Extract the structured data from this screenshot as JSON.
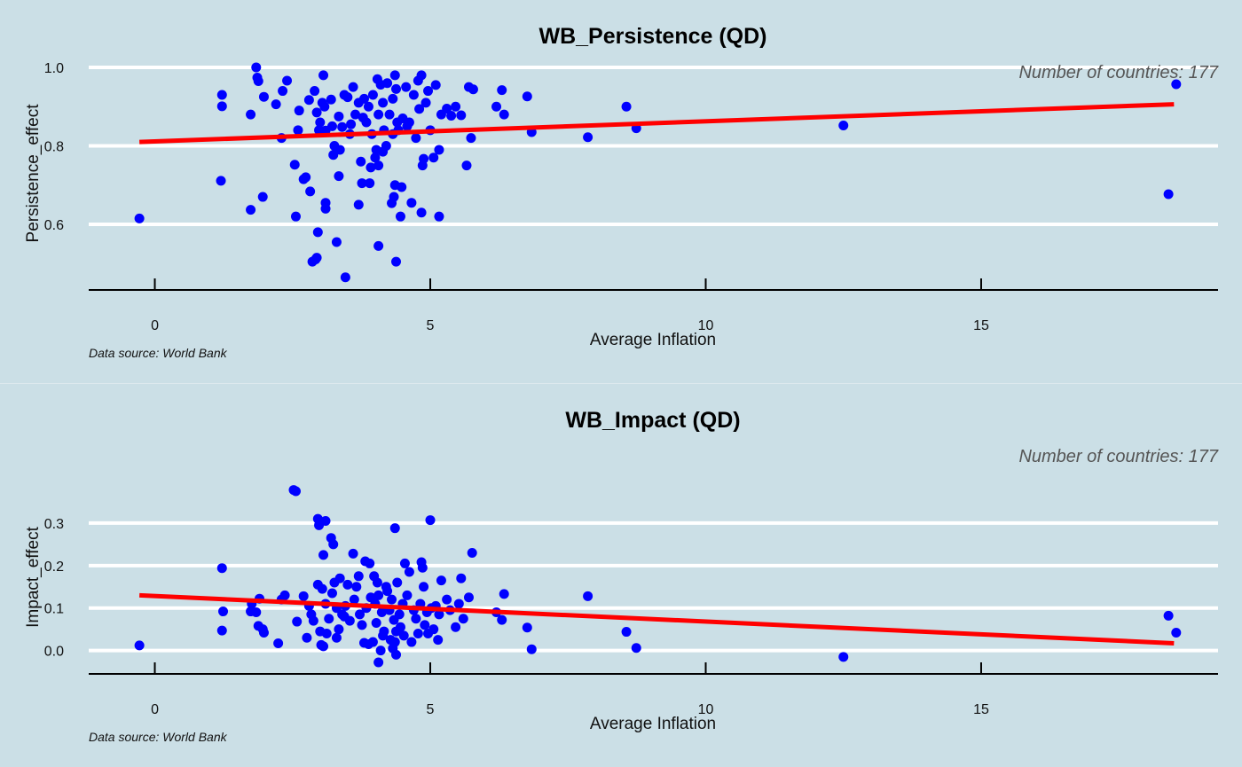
{
  "colors": {
    "background": "#cbdfe6",
    "point": "#0000ff",
    "fit_line": "#ff0000",
    "grid": "#ffffff",
    "axis": "#000000"
  },
  "chart_data": [
    {
      "type": "scatter",
      "title": "WB_Persistence (QD)",
      "xlabel": "Average Inflation",
      "ylabel": "Persistence_effect",
      "annotation": "Number of countries: 177",
      "caption": "Data source: World Bank",
      "xlim": [
        -1.2,
        19.3
      ],
      "ylim": [
        0.46,
        1.0
      ],
      "x_ticks": [
        0,
        5,
        10,
        15
      ],
      "y_ticks": [
        0.6,
        0.8,
        1.0
      ],
      "y_tick_labels": [
        "0.6",
        "0.8",
        "1.0"
      ],
      "grid": true,
      "fit_line": {
        "x": [
          -0.28,
          18.5
        ],
        "y": [
          0.81,
          0.906
        ]
      },
      "points": [
        [
          -0.28,
          0.615
        ],
        [
          1.22,
          0.93
        ],
        [
          1.22,
          0.901
        ],
        [
          1.2,
          0.711
        ],
        [
          1.74,
          0.88
        ],
        [
          1.74,
          0.637
        ],
        [
          1.84,
          1.0
        ],
        [
          1.86,
          0.974
        ],
        [
          1.88,
          0.965
        ],
        [
          1.96,
          0.67
        ],
        [
          1.98,
          0.925
        ],
        [
          2.2,
          0.906
        ],
        [
          2.3,
          0.82
        ],
        [
          2.32,
          0.94
        ],
        [
          2.4,
          0.966
        ],
        [
          2.54,
          0.752
        ],
        [
          2.56,
          0.62
        ],
        [
          2.6,
          0.84
        ],
        [
          2.62,
          0.89
        ],
        [
          2.7,
          0.715
        ],
        [
          2.74,
          0.72
        ],
        [
          2.8,
          0.917
        ],
        [
          2.82,
          0.684
        ],
        [
          2.86,
          0.505
        ],
        [
          2.9,
          0.94
        ],
        [
          2.92,
          0.511
        ],
        [
          2.94,
          0.515
        ],
        [
          2.94,
          0.885
        ],
        [
          2.96,
          0.58
        ],
        [
          2.98,
          0.84
        ],
        [
          3.0,
          0.86
        ],
        [
          3.04,
          0.91
        ],
        [
          3.06,
          0.98
        ],
        [
          3.08,
          0.9
        ],
        [
          3.1,
          0.839
        ],
        [
          3.1,
          0.655
        ],
        [
          3.1,
          0.64
        ],
        [
          3.2,
          0.918
        ],
        [
          3.22,
          0.85
        ],
        [
          3.24,
          0.777
        ],
        [
          3.26,
          0.8
        ],
        [
          3.3,
          0.555
        ],
        [
          3.34,
          0.723
        ],
        [
          3.34,
          0.875
        ],
        [
          3.36,
          0.79
        ],
        [
          3.4,
          0.848
        ],
        [
          3.44,
          0.93
        ],
        [
          3.46,
          0.465
        ],
        [
          3.5,
          0.924
        ],
        [
          3.54,
          0.83
        ],
        [
          3.56,
          0.855
        ],
        [
          3.6,
          0.95
        ],
        [
          3.64,
          0.88
        ],
        [
          3.7,
          0.65
        ],
        [
          3.7,
          0.91
        ],
        [
          3.74,
          0.76
        ],
        [
          3.76,
          0.705
        ],
        [
          3.78,
          0.872
        ],
        [
          3.8,
          0.92
        ],
        [
          3.84,
          0.86
        ],
        [
          3.88,
          0.9
        ],
        [
          3.9,
          0.705
        ],
        [
          3.92,
          0.745
        ],
        [
          3.94,
          0.83
        ],
        [
          3.96,
          0.93
        ],
        [
          4.0,
          0.77
        ],
        [
          4.02,
          0.79
        ],
        [
          4.04,
          0.97
        ],
        [
          4.06,
          0.88
        ],
        [
          4.06,
          0.75
        ],
        [
          4.06,
          0.545
        ],
        [
          4.1,
          0.956
        ],
        [
          4.14,
          0.91
        ],
        [
          4.14,
          0.785
        ],
        [
          4.16,
          0.84
        ],
        [
          4.2,
          0.8
        ],
        [
          4.22,
          0.96
        ],
        [
          4.26,
          0.88
        ],
        [
          4.3,
          0.654
        ],
        [
          4.32,
          0.83
        ],
        [
          4.32,
          0.92
        ],
        [
          4.34,
          0.67
        ],
        [
          4.36,
          0.98
        ],
        [
          4.36,
          0.7
        ],
        [
          4.38,
          0.945
        ],
        [
          4.38,
          0.505
        ],
        [
          4.4,
          0.86
        ],
        [
          4.42,
          0.84
        ],
        [
          4.46,
          0.62
        ],
        [
          4.48,
          0.695
        ],
        [
          4.5,
          0.87
        ],
        [
          4.56,
          0.95
        ],
        [
          4.58,
          0.85
        ],
        [
          4.62,
          0.86
        ],
        [
          4.66,
          0.655
        ],
        [
          4.7,
          0.93
        ],
        [
          4.74,
          0.82
        ],
        [
          4.78,
          0.966
        ],
        [
          4.8,
          0.894
        ],
        [
          4.84,
          0.63
        ],
        [
          4.84,
          0.98
        ],
        [
          4.86,
          0.75
        ],
        [
          4.88,
          0.767
        ],
        [
          4.92,
          0.91
        ],
        [
          4.96,
          0.94
        ],
        [
          5.0,
          0.84
        ],
        [
          5.06,
          0.77
        ],
        [
          5.1,
          0.955
        ],
        [
          5.16,
          0.62
        ],
        [
          5.16,
          0.79
        ],
        [
          5.2,
          0.88
        ],
        [
          5.3,
          0.895
        ],
        [
          5.38,
          0.877
        ],
        [
          5.46,
          0.9
        ],
        [
          5.56,
          0.878
        ],
        [
          5.66,
          0.75
        ],
        [
          5.7,
          0.95
        ],
        [
          5.74,
          0.82
        ],
        [
          5.78,
          0.944
        ],
        [
          6.2,
          0.9
        ],
        [
          6.3,
          0.942
        ],
        [
          6.34,
          0.88
        ],
        [
          6.76,
          0.926
        ],
        [
          6.84,
          0.835
        ],
        [
          7.86,
          0.822
        ],
        [
          8.56,
          0.9
        ],
        [
          8.74,
          0.845
        ],
        [
          12.5,
          0.852
        ],
        [
          18.4,
          0.677
        ],
        [
          18.54,
          0.957
        ]
      ]
    },
    {
      "type": "scatter",
      "title": "WB_Impact (QD)",
      "xlabel": "Average Inflation",
      "ylabel": "Impact_effect",
      "annotation": "Number of countries: 177",
      "caption": "Data source: World Bank",
      "xlim": [
        -1.2,
        19.3
      ],
      "ylim": [
        -0.03,
        0.375
      ],
      "x_ticks": [
        0,
        5,
        10,
        15
      ],
      "y_ticks": [
        0.0,
        0.1,
        0.2,
        0.3
      ],
      "y_tick_labels": [
        "0.0",
        "0.1",
        "0.2",
        "0.3"
      ],
      "grid": true,
      "fit_line": {
        "x": [
          -0.28,
          18.5
        ],
        "y": [
          0.13,
          0.017
        ]
      },
      "points": [
        [
          -0.28,
          0.012
        ],
        [
          1.22,
          0.194
        ],
        [
          1.24,
          0.092
        ],
        [
          1.22,
          0.047
        ],
        [
          1.74,
          0.092
        ],
        [
          1.76,
          0.11
        ],
        [
          1.84,
          0.09
        ],
        [
          1.9,
          0.122
        ],
        [
          1.88,
          0.058
        ],
        [
          1.96,
          0.05
        ],
        [
          1.98,
          0.042
        ],
        [
          2.24,
          0.017
        ],
        [
          2.3,
          0.12
        ],
        [
          2.36,
          0.13
        ],
        [
          2.52,
          0.378
        ],
        [
          2.56,
          0.375
        ],
        [
          2.58,
          0.068
        ],
        [
          2.7,
          0.128
        ],
        [
          2.76,
          0.03
        ],
        [
          2.8,
          0.105
        ],
        [
          2.84,
          0.085
        ],
        [
          2.88,
          0.07
        ],
        [
          2.96,
          0.155
        ],
        [
          2.96,
          0.31
        ],
        [
          2.98,
          0.295
        ],
        [
          3.0,
          0.045
        ],
        [
          3.02,
          0.013
        ],
        [
          3.04,
          0.145
        ],
        [
          3.06,
          0.01
        ],
        [
          3.06,
          0.225
        ],
        [
          3.1,
          0.305
        ],
        [
          3.1,
          0.11
        ],
        [
          3.12,
          0.04
        ],
        [
          3.16,
          0.075
        ],
        [
          3.2,
          0.265
        ],
        [
          3.22,
          0.135
        ],
        [
          3.24,
          0.25
        ],
        [
          3.26,
          0.16
        ],
        [
          3.3,
          0.1
        ],
        [
          3.3,
          0.03
        ],
        [
          3.34,
          0.05
        ],
        [
          3.36,
          0.17
        ],
        [
          3.4,
          0.085
        ],
        [
          3.44,
          0.08
        ],
        [
          3.46,
          0.105
        ],
        [
          3.5,
          0.155
        ],
        [
          3.54,
          0.07
        ],
        [
          3.6,
          0.228
        ],
        [
          3.62,
          0.12
        ],
        [
          3.66,
          0.15
        ],
        [
          3.7,
          0.175
        ],
        [
          3.72,
          0.085
        ],
        [
          3.76,
          0.06
        ],
        [
          3.8,
          0.018
        ],
        [
          3.82,
          0.21
        ],
        [
          3.84,
          0.1
        ],
        [
          3.88,
          0.015
        ],
        [
          3.9,
          0.205
        ],
        [
          3.92,
          0.125
        ],
        [
          3.96,
          0.02
        ],
        [
          3.98,
          0.175
        ],
        [
          4.0,
          0.11
        ],
        [
          4.02,
          0.065
        ],
        [
          4.04,
          0.16
        ],
        [
          4.06,
          0.13
        ],
        [
          4.06,
          -0.028
        ],
        [
          4.1,
          0.0
        ],
        [
          4.12,
          0.09
        ],
        [
          4.14,
          0.035
        ],
        [
          4.16,
          0.045
        ],
        [
          4.2,
          0.15
        ],
        [
          4.22,
          0.14
        ],
        [
          4.26,
          0.095
        ],
        [
          4.28,
          0.025
        ],
        [
          4.3,
          0.12
        ],
        [
          4.32,
          0.005
        ],
        [
          4.34,
          0.072
        ],
        [
          4.36,
          0.288
        ],
        [
          4.36,
          0.02
        ],
        [
          4.38,
          0.045
        ],
        [
          4.38,
          -0.01
        ],
        [
          4.4,
          0.16
        ],
        [
          4.44,
          0.085
        ],
        [
          4.46,
          0.055
        ],
        [
          4.5,
          0.11
        ],
        [
          4.52,
          0.035
        ],
        [
          4.54,
          0.205
        ],
        [
          4.58,
          0.13
        ],
        [
          4.62,
          0.185
        ],
        [
          4.66,
          0.02
        ],
        [
          4.7,
          0.095
        ],
        [
          4.74,
          0.075
        ],
        [
          4.78,
          0.04
        ],
        [
          4.82,
          0.11
        ],
        [
          4.84,
          0.208
        ],
        [
          4.86,
          0.195
        ],
        [
          4.88,
          0.15
        ],
        [
          4.9,
          0.06
        ],
        [
          4.94,
          0.09
        ],
        [
          4.96,
          0.04
        ],
        [
          5.0,
          0.307
        ],
        [
          5.02,
          0.1
        ],
        [
          5.06,
          0.05
        ],
        [
          5.1,
          0.105
        ],
        [
          5.14,
          0.025
        ],
        [
          5.16,
          0.085
        ],
        [
          5.2,
          0.165
        ],
        [
          5.3,
          0.12
        ],
        [
          5.36,
          0.095
        ],
        [
          5.46,
          0.055
        ],
        [
          5.52,
          0.11
        ],
        [
          5.56,
          0.17
        ],
        [
          5.6,
          0.075
        ],
        [
          5.7,
          0.125
        ],
        [
          5.76,
          0.23
        ],
        [
          6.2,
          0.09
        ],
        [
          6.3,
          0.072
        ],
        [
          6.34,
          0.133
        ],
        [
          6.76,
          0.054
        ],
        [
          6.84,
          0.003
        ],
        [
          7.86,
          0.128
        ],
        [
          8.56,
          0.044
        ],
        [
          8.74,
          0.006
        ],
        [
          12.5,
          -0.015
        ],
        [
          18.4,
          0.082
        ],
        [
          18.54,
          0.042
        ]
      ]
    }
  ]
}
